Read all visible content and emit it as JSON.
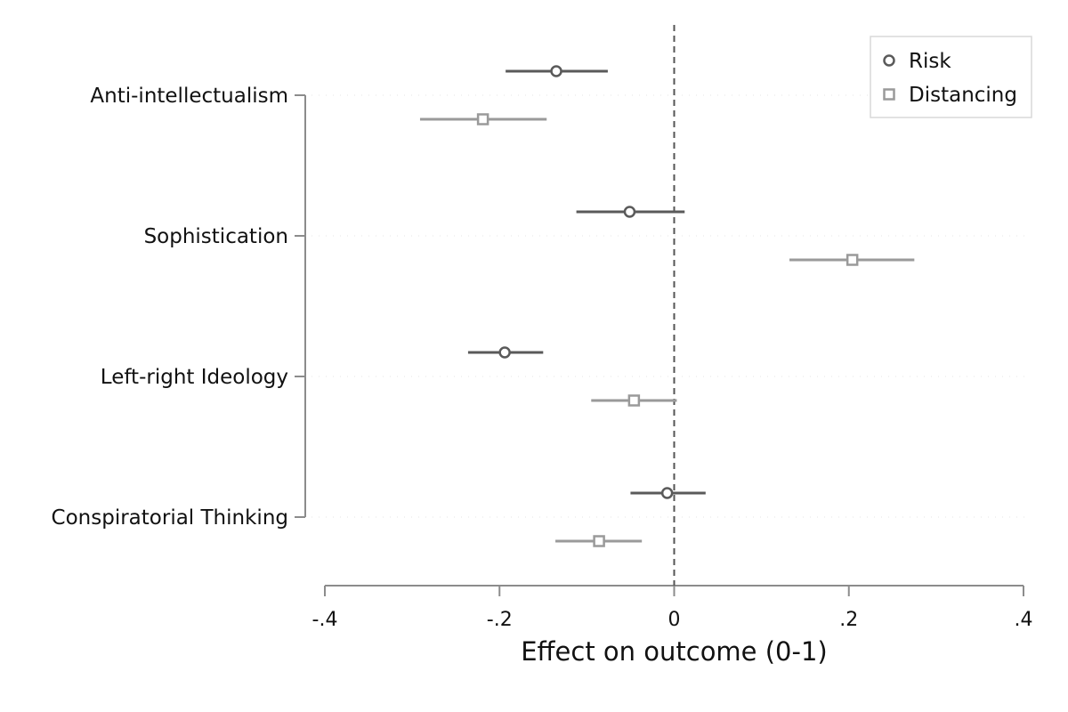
{
  "chart_data": {
    "type": "scatter",
    "title": "",
    "xlabel": "Effect on outcome (0-1)",
    "ylabel": "",
    "xlim": [
      -0.4,
      0.4
    ],
    "x_ticks": [
      "-.4",
      "-.2",
      "0",
      ".2",
      ".4"
    ],
    "x_tick_values": [
      -0.4,
      -0.2,
      0,
      0.2,
      0.4
    ],
    "reference_line": 0,
    "grid": true,
    "legend_position": "top-right",
    "categories": [
      "Anti-intellectualism",
      "Sophistication",
      "Left-right Ideology",
      "Conspiratorial Thinking"
    ],
    "series": [
      {
        "name": "Risk",
        "marker": "circle",
        "color": "#5a5a5a",
        "estimates": [
          -0.135,
          -0.051,
          -0.194,
          -0.008
        ],
        "ci_low": [
          -0.193,
          -0.112,
          -0.236,
          -0.05
        ],
        "ci_high": [
          -0.076,
          0.012,
          -0.15,
          0.036
        ]
      },
      {
        "name": "Distancing",
        "marker": "square",
        "color": "#9a9a9a",
        "estimates": [
          -0.219,
          0.204,
          -0.046,
          -0.086
        ],
        "ci_low": [
          -0.291,
          0.132,
          -0.095,
          -0.136
        ],
        "ci_high": [
          -0.146,
          0.275,
          0.003,
          -0.037
        ]
      }
    ]
  }
}
